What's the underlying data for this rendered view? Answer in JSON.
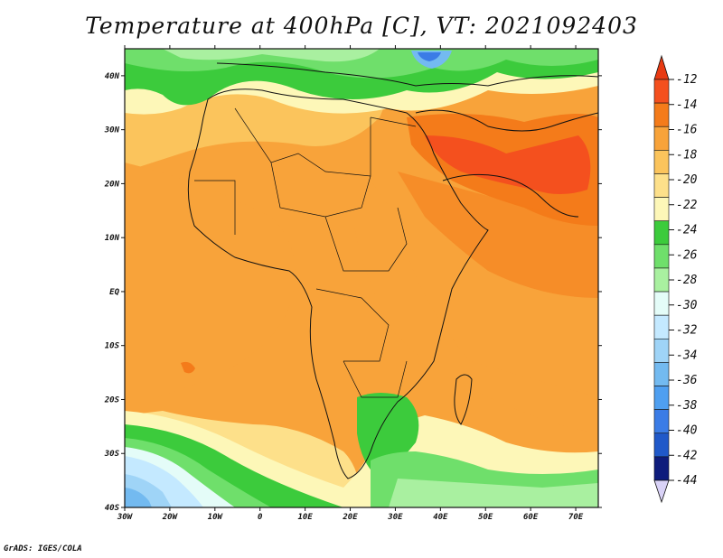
{
  "title": "Temperature at 400hPa [C], VT: 2021092403",
  "credit": "GrADS: IGES/COLA",
  "map": {
    "lon_range": [
      -30,
      75
    ],
    "lat_range": [
      -40,
      45
    ],
    "lon_ticks": [
      "30W",
      "20W",
      "10W",
      "0",
      "10E",
      "20E",
      "30E",
      "40E",
      "50E",
      "60E",
      "70E"
    ],
    "lat_ticks": [
      "40N",
      "30N",
      "20N",
      "10N",
      "EQ",
      "10S",
      "20S",
      "30S",
      "40S"
    ],
    "units": "C"
  },
  "colorbar": {
    "labels": [
      "-12",
      "-14",
      "-16",
      "-18",
      "-20",
      "-22",
      "-24",
      "-26",
      "-28",
      "-30",
      "-32",
      "-34",
      "-36",
      "-38",
      "-40",
      "-42",
      "-44"
    ],
    "colors": [
      "#f4501e",
      "#f47b1a",
      "#f8a33a",
      "#fbc45c",
      "#fde08a",
      "#fdf7b8",
      "#3ccb3c",
      "#6fdf6b",
      "#a9f0a0",
      "#e4fcf8",
      "#c4e9ff",
      "#9fd4f7",
      "#73baf0",
      "#4f9ff0",
      "#3b7ce6",
      "#2059c9",
      "#0e1c7c"
    ],
    "top_arrow_color": "#e83a12",
    "bottom_arrow_color": "#d9d2f7"
  }
}
